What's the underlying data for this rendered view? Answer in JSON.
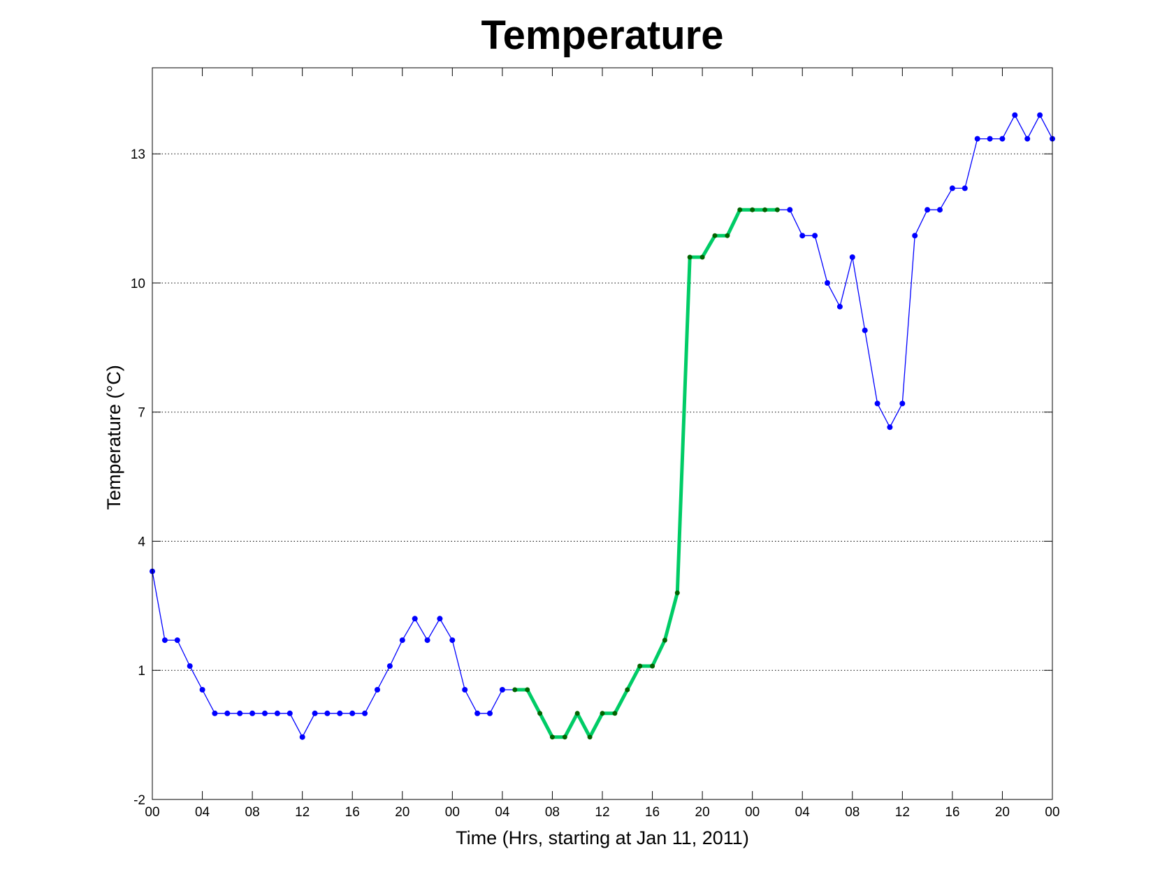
{
  "chart_data": {
    "type": "line",
    "title": "Temperature",
    "xlabel": "Time (Hrs, starting at Jan 11, 2011)",
    "ylabel": "Temperature (°C)",
    "xlim": [
      0,
      72
    ],
    "ylim": [
      -2,
      15
    ],
    "x_ticks": [
      0,
      4,
      8,
      12,
      16,
      20,
      24,
      28,
      32,
      36,
      40,
      44,
      48,
      52,
      56,
      60,
      64,
      68,
      72
    ],
    "x_tick_labels": [
      "00",
      "04",
      "08",
      "12",
      "16",
      "20",
      "00",
      "04",
      "08",
      "12",
      "16",
      "20",
      "00",
      "04",
      "08",
      "12",
      "16",
      "20",
      "00"
    ],
    "y_ticks": [
      -2,
      1,
      4,
      7,
      10,
      13
    ],
    "y_tick_labels": [
      "-2",
      "1",
      "4",
      "7",
      "10",
      "13"
    ],
    "grid": "y-dotted",
    "x": [
      0,
      1,
      2,
      3,
      4,
      5,
      6,
      7,
      8,
      9,
      10,
      11,
      12,
      13,
      14,
      15,
      16,
      17,
      18,
      19,
      20,
      21,
      22,
      23,
      24,
      25,
      26,
      27,
      28,
      29,
      30,
      31,
      32,
      33,
      34,
      35,
      36,
      37,
      38,
      39,
      40,
      41,
      42,
      43,
      44,
      45,
      46,
      47,
      48,
      49,
      50,
      51,
      52,
      53,
      54,
      55,
      56,
      57,
      58,
      59,
      60,
      61,
      62,
      63,
      64,
      65,
      66,
      67,
      68,
      69,
      70,
      71,
      72
    ],
    "series": [
      {
        "color": "#0000ff",
        "values": [
          3.3,
          1.7,
          1.7,
          1.1,
          0.55,
          0,
          0,
          0,
          0,
          0,
          0,
          0,
          -0.55,
          0,
          0,
          0,
          0,
          0,
          0.55,
          1.1,
          1.7,
          2.2,
          1.7,
          2.2,
          1.7,
          0.55,
          0,
          0,
          0.55,
          0.55,
          0.55,
          0,
          -0.55,
          -0.55,
          0,
          -0.55,
          0,
          0,
          0.55,
          1.1,
          1.1,
          1.7,
          2.8,
          10.6,
          10.6,
          11.1,
          11.1,
          11.7,
          11.7,
          11.7,
          11.7,
          11.7,
          11.1,
          11.1,
          10.0,
          9.45,
          10.6,
          8.9,
          7.2,
          6.65,
          7.2,
          11.1,
          11.7,
          11.7,
          12.2,
          12.2,
          13.35,
          13.35,
          13.35,
          13.9,
          13.35,
          13.9,
          13.35
        ]
      },
      {
        "color": "#00cc66",
        "marker_color": "#006400",
        "x_range": [
          29,
          50
        ]
      }
    ]
  }
}
